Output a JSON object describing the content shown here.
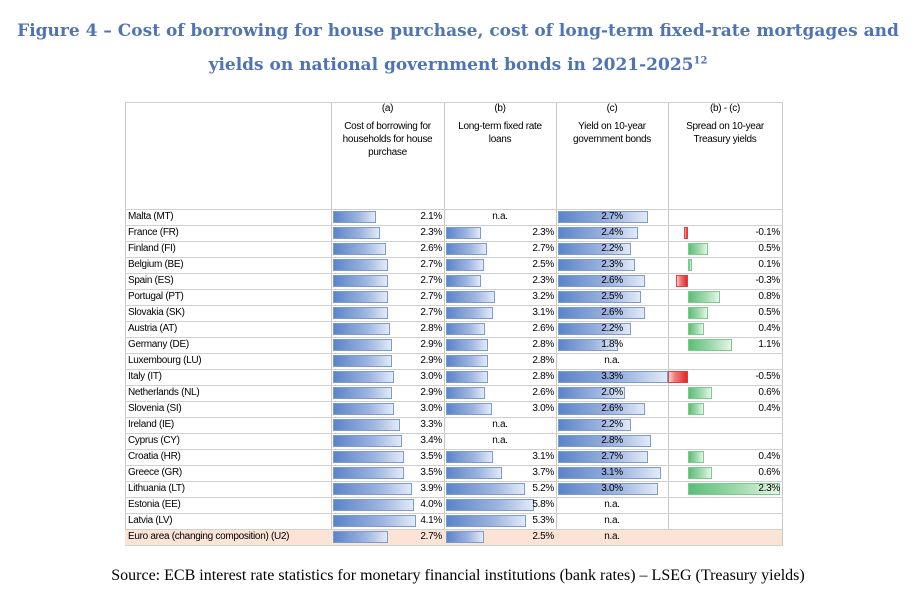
{
  "figure": {
    "title_line1": "Figure 4 – Cost of borrowing for house purchase, cost of long-term fixed-rate mortgages and",
    "title_line2": "yields on national government bonds in 2021-2025",
    "title_sup": "12",
    "source": "Source: ECB interest rate statistics for monetary financial institutions (bank rates) – LSEG (Treasury yields)"
  },
  "columns": [
    {
      "code": "(a)",
      "label": "Cost of borrowing for households for house purchase"
    },
    {
      "code": "(b)",
      "label": "Long-term fixed rate loans"
    },
    {
      "code": "(c)",
      "label": "Yield on 10-year government bonds"
    },
    {
      "code": "(b) - (c)",
      "label": "Spread on 10-year Treasury yields"
    }
  ],
  "colors": {
    "blue_bar": "#5C84C8",
    "green_bar": "#5BBE76",
    "red_bar": "#E32626",
    "title": "#4F74B3",
    "euro_area_bg": "#FBE3D6"
  },
  "table": {
    "max_a": 4.1,
    "max_b": 5.8,
    "max_c": 3.3,
    "max_spread": 2.3,
    "rows": [
      {
        "country": "Malta (MT)",
        "a": 2.1,
        "a_text": "2.1%",
        "b": null,
        "b_text": "n.a.",
        "c": 2.7,
        "c_text": "2.7%",
        "s": null,
        "s_text": ""
      },
      {
        "country": "France (FR)",
        "a": 2.3,
        "a_text": "2.3%",
        "b": 2.3,
        "b_text": "2.3%",
        "c": 2.4,
        "c_text": "2.4%",
        "s": -0.1,
        "s_text": "-0.1%"
      },
      {
        "country": "Finland (FI)",
        "a": 2.6,
        "a_text": "2.6%",
        "b": 2.7,
        "b_text": "2.7%",
        "c": 2.2,
        "c_text": "2.2%",
        "s": 0.5,
        "s_text": "0.5%"
      },
      {
        "country": "Belgium (BE)",
        "a": 2.7,
        "a_text": "2.7%",
        "b": 2.5,
        "b_text": "2.5%",
        "c": 2.3,
        "c_text": "2.3%",
        "s": 0.1,
        "s_text": "0.1%"
      },
      {
        "country": "Spain (ES)",
        "a": 2.7,
        "a_text": "2.7%",
        "b": 2.3,
        "b_text": "2.3%",
        "c": 2.6,
        "c_text": "2.6%",
        "s": -0.3,
        "s_text": "-0.3%"
      },
      {
        "country": "Portugal (PT)",
        "a": 2.7,
        "a_text": "2.7%",
        "b": 3.2,
        "b_text": "3.2%",
        "c": 2.5,
        "c_text": "2.5%",
        "s": 0.8,
        "s_text": "0.8%"
      },
      {
        "country": "Slovakia (SK)",
        "a": 2.7,
        "a_text": "2.7%",
        "b": 3.1,
        "b_text": "3.1%",
        "c": 2.6,
        "c_text": "2.6%",
        "s": 0.5,
        "s_text": "0.5%"
      },
      {
        "country": "Austria (AT)",
        "a": 2.8,
        "a_text": "2.8%",
        "b": 2.6,
        "b_text": "2.6%",
        "c": 2.2,
        "c_text": "2.2%",
        "s": 0.4,
        "s_text": "0.4%"
      },
      {
        "country": "Germany (DE)",
        "a": 2.9,
        "a_text": "2.9%",
        "b": 2.8,
        "b_text": "2.8%",
        "c": 1.8,
        "c_text": "1.8%",
        "s": 1.1,
        "s_text": "1.1%"
      },
      {
        "country": "Luxembourg (LU)",
        "a": 2.9,
        "a_text": "2.9%",
        "b": 2.8,
        "b_text": "2.8%",
        "c": null,
        "c_text": "n.a.",
        "s": null,
        "s_text": ""
      },
      {
        "country": "Italy (IT)",
        "a": 3.0,
        "a_text": "3.0%",
        "b": 2.8,
        "b_text": "2.8%",
        "c": 3.3,
        "c_text": "3.3%",
        "s": -0.5,
        "s_text": "-0.5%"
      },
      {
        "country": "Netherlands (NL)",
        "a": 2.9,
        "a_text": "2.9%",
        "b": 2.6,
        "b_text": "2.6%",
        "c": 2.0,
        "c_text": "2.0%",
        "s": 0.6,
        "s_text": "0.6%"
      },
      {
        "country": "Slovenia (SI)",
        "a": 3.0,
        "a_text": "3.0%",
        "b": 3.0,
        "b_text": "3.0%",
        "c": 2.6,
        "c_text": "2.6%",
        "s": 0.4,
        "s_text": "0.4%"
      },
      {
        "country": "Ireland (IE)",
        "a": 3.3,
        "a_text": "3.3%",
        "b": null,
        "b_text": "n.a.",
        "c": 2.2,
        "c_text": "2.2%",
        "s": null,
        "s_text": ""
      },
      {
        "country": "Cyprus (CY)",
        "a": 3.4,
        "a_text": "3.4%",
        "b": null,
        "b_text": "n.a.",
        "c": 2.8,
        "c_text": "2.8%",
        "s": null,
        "s_text": ""
      },
      {
        "country": "Croatia (HR)",
        "a": 3.5,
        "a_text": "3.5%",
        "b": 3.1,
        "b_text": "3.1%",
        "c": 2.7,
        "c_text": "2.7%",
        "s": 0.4,
        "s_text": "0.4%"
      },
      {
        "country": "Greece (GR)",
        "a": 3.5,
        "a_text": "3.5%",
        "b": 3.7,
        "b_text": "3.7%",
        "c": 3.1,
        "c_text": "3.1%",
        "s": 0.6,
        "s_text": "0.6%"
      },
      {
        "country": "Lithuania (LT)",
        "a": 3.9,
        "a_text": "3.9%",
        "b": 5.2,
        "b_text": "5.2%",
        "c": 3.0,
        "c_text": "3.0%",
        "s": 2.3,
        "s_text": "2.3%"
      },
      {
        "country": "Estonia (EE)",
        "a": 4.0,
        "a_text": "4.0%",
        "b": 5.8,
        "b_text": "5.8%",
        "c": null,
        "c_text": "n.a.",
        "s": null,
        "s_text": ""
      },
      {
        "country": "Latvia (LV)",
        "a": 4.1,
        "a_text": "4.1%",
        "b": 5.3,
        "b_text": "5.3%",
        "c": null,
        "c_text": "n.a.",
        "s": null,
        "s_text": ""
      },
      {
        "country": "Euro area (changing composition) (U2)",
        "a": 2.7,
        "a_text": "2.7%",
        "b": 2.5,
        "b_text": "2.5%",
        "c": null,
        "c_text": "n.a.",
        "s": null,
        "s_text": "",
        "highlight": true
      }
    ]
  }
}
